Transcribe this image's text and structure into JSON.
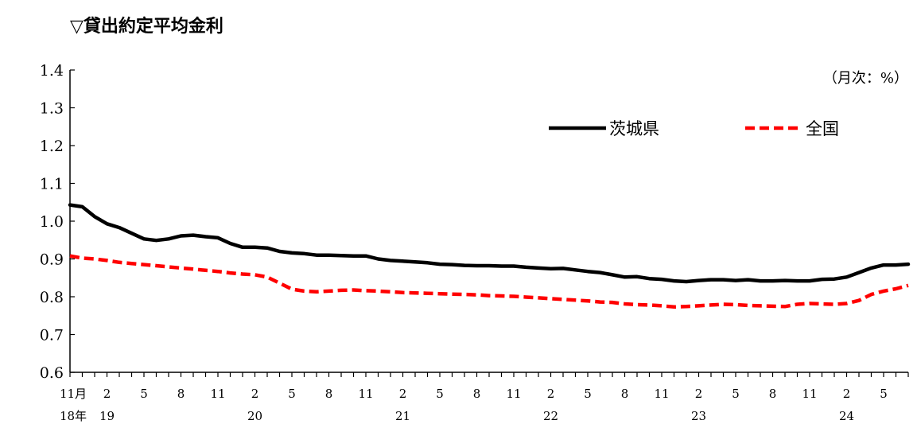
{
  "title": "▽貸出約定平均金利",
  "unit": "（月次：%）",
  "chart_data": {
    "type": "line",
    "title": "▽貸出約定平均金利",
    "unit_label": "（月次：%）",
    "ylim": [
      0.6,
      1.4
    ],
    "yticks": [
      "0.6",
      "0.7",
      "0.8",
      "0.9",
      "1.0",
      "1.1",
      "1.2",
      "1.3",
      "1.4"
    ],
    "x_first_label": "11月",
    "x_month_labels": [
      "2",
      "5",
      "8",
      "11",
      "2",
      "5",
      "8",
      "11",
      "2",
      "5",
      "8",
      "11",
      "2",
      "5",
      "8",
      "11",
      "2",
      "5",
      "8",
      "11",
      "2",
      "5"
    ],
    "x_year_labels": [
      "18年",
      "19",
      "20",
      "21",
      "22",
      "23",
      "24"
    ],
    "legend_position": "top-right",
    "series": [
      {
        "name": "茨城県",
        "color": "#000000",
        "style": "solid",
        "values": [
          1.043,
          1.038,
          1.012,
          0.993,
          0.983,
          0.968,
          0.953,
          0.949,
          0.953,
          0.961,
          0.963,
          0.959,
          0.956,
          0.941,
          0.931,
          0.931,
          0.929,
          0.92,
          0.916,
          0.914,
          0.91,
          0.91,
          0.909,
          0.908,
          0.908,
          0.9,
          0.896,
          0.894,
          0.892,
          0.89,
          0.886,
          0.885,
          0.883,
          0.882,
          0.882,
          0.881,
          0.881,
          0.878,
          0.876,
          0.874,
          0.875,
          0.871,
          0.867,
          0.864,
          0.858,
          0.852,
          0.853,
          0.848,
          0.846,
          0.842,
          0.84,
          0.843,
          0.845,
          0.845,
          0.843,
          0.845,
          0.842,
          0.842,
          0.843,
          0.842,
          0.842,
          0.846,
          0.847,
          0.852,
          0.864,
          0.876,
          0.884,
          0.884,
          0.886
        ]
      },
      {
        "name": "全国",
        "color": "#ff0000",
        "style": "dashed",
        "values": [
          0.908,
          0.902,
          0.9,
          0.896,
          0.891,
          0.888,
          0.885,
          0.882,
          0.879,
          0.876,
          0.873,
          0.87,
          0.867,
          0.863,
          0.86,
          0.858,
          0.852,
          0.836,
          0.82,
          0.815,
          0.813,
          0.815,
          0.817,
          0.818,
          0.816,
          0.815,
          0.813,
          0.811,
          0.81,
          0.809,
          0.808,
          0.807,
          0.806,
          0.805,
          0.803,
          0.802,
          0.801,
          0.799,
          0.797,
          0.795,
          0.793,
          0.791,
          0.789,
          0.786,
          0.785,
          0.781,
          0.779,
          0.778,
          0.776,
          0.773,
          0.774,
          0.776,
          0.778,
          0.78,
          0.779,
          0.777,
          0.776,
          0.775,
          0.774,
          0.78,
          0.782,
          0.781,
          0.78,
          0.782,
          0.79,
          0.806,
          0.815,
          0.821,
          0.83
        ]
      }
    ]
  }
}
